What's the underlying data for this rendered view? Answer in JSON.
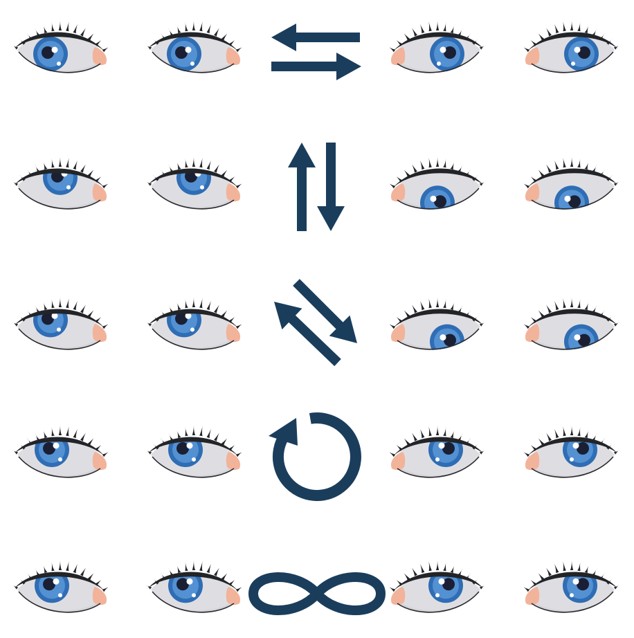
{
  "title": "",
  "colors": {
    "background": "#ffffff",
    "sclera": "#dedee2",
    "sclera_shade": "#c9c9ce",
    "iris_outer": "#2f6db4",
    "iris_inner": "#5a98d8",
    "pupil": "#1a1f33",
    "lash": "#222428",
    "lid_line": "#2a2a2e",
    "caruncle": "#f2b39b",
    "highlight": "#ffffff",
    "arrow": "#1b3d5c"
  },
  "rows": [
    {
      "name": "horizontal",
      "direction_icon": "left-right-arrows-icon",
      "eyes": [
        {
          "gaze": [
            -0.35,
            0.0
          ]
        },
        {
          "gaze": [
            -0.35,
            0.0
          ]
        },
        {
          "gaze": [
            0.35,
            0.0
          ]
        },
        {
          "gaze": [
            0.35,
            0.0
          ]
        }
      ]
    },
    {
      "name": "vertical",
      "direction_icon": "up-down-arrows-icon",
      "eyes": [
        {
          "gaze": [
            0.0,
            -0.7
          ]
        },
        {
          "gaze": [
            0.0,
            -0.7
          ]
        },
        {
          "gaze": [
            0.0,
            0.7
          ]
        },
        {
          "gaze": [
            0.0,
            0.7
          ]
        }
      ]
    },
    {
      "name": "diagonal",
      "direction_icon": "diagonal-arrows-icon",
      "eyes": [
        {
          "gaze": [
            -0.35,
            -0.6
          ]
        },
        {
          "gaze": [
            -0.35,
            -0.6
          ]
        },
        {
          "gaze": [
            0.35,
            0.6
          ]
        },
        {
          "gaze": [
            0.35,
            0.6
          ]
        }
      ]
    },
    {
      "name": "circular",
      "direction_icon": "circular-arrow-icon",
      "eyes": [
        {
          "gaze": [
            -0.3,
            -0.5
          ]
        },
        {
          "gaze": [
            -0.3,
            -0.5
          ]
        },
        {
          "gaze": [
            0.3,
            -0.5
          ]
        },
        {
          "gaze": [
            0.3,
            -0.5
          ]
        }
      ]
    },
    {
      "name": "infinity",
      "direction_icon": "infinity-icon",
      "eyes": [
        {
          "gaze": [
            -0.3,
            -0.45
          ]
        },
        {
          "gaze": [
            -0.3,
            -0.45
          ]
        },
        {
          "gaze": [
            0.3,
            -0.45
          ]
        },
        {
          "gaze": [
            0.3,
            -0.45
          ]
        }
      ]
    }
  ]
}
